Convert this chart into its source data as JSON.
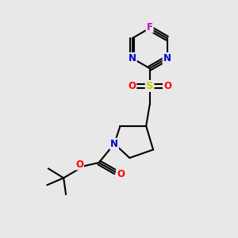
{
  "background_color": "#e8e8e8",
  "figsize": [
    3.0,
    3.0
  ],
  "dpi": 100,
  "atom_colors": {
    "C": "#000000",
    "N": "#0000cc",
    "O": "#ff0000",
    "S": "#cccc00",
    "F": "#cc00cc"
  },
  "bond_color": "#000000",
  "bond_width": 1.5,
  "font_size": 8.5,
  "xlim": [
    0,
    10
  ],
  "ylim": [
    0,
    10
  ]
}
